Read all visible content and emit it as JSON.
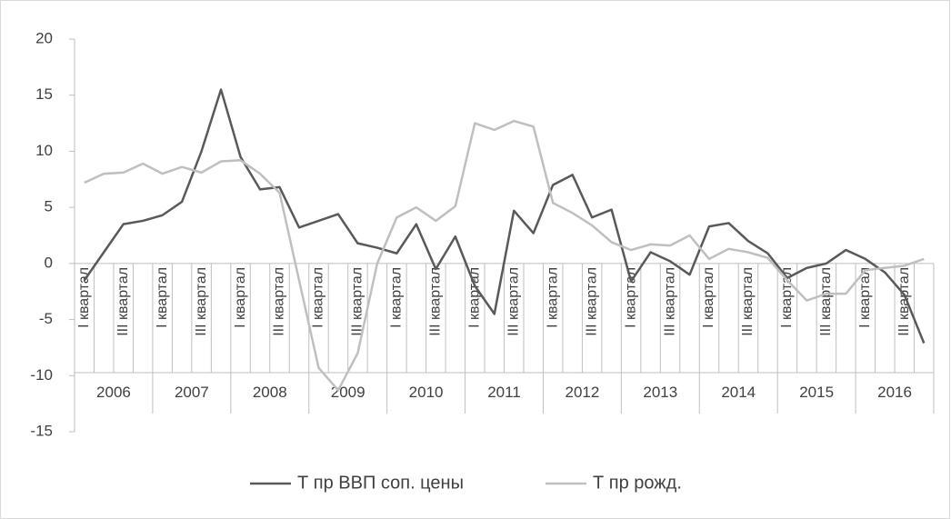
{
  "chart_data": {
    "type": "line",
    "categories": [
      "I квартал",
      null,
      "III квартал",
      null,
      "I квартал",
      null,
      "III квартал",
      null,
      "I квартал",
      null,
      "III квартал",
      null,
      "I квартал",
      null,
      "III квартал",
      null,
      "I квартал",
      null,
      "III квартал",
      null,
      "I квартал",
      null,
      "III квартал",
      null,
      "I квартал",
      null,
      "III квартал",
      null,
      "I квартал",
      null,
      "III квартал",
      null,
      "I квартал",
      null,
      "III квартал",
      null,
      "I квартал",
      null,
      "III квартал",
      null,
      "I квартал",
      null,
      "III квартал",
      null
    ],
    "category_groups": [
      "2006",
      "2007",
      "2008",
      "2009",
      "2010",
      "2011",
      "2012",
      "2013",
      "2014",
      "2015",
      "2016"
    ],
    "series": [
      {
        "name": "Т пр ВВП соп. цены",
        "color": "#595959",
        "values": [
          -1.5,
          1,
          3.5,
          3.8,
          4.3,
          5.5,
          10,
          15.5,
          9.5,
          6.6,
          6.8,
          3.2,
          3.8,
          4.4,
          1.8,
          1.4,
          0.9,
          3.5,
          -0.5,
          2.4,
          -2,
          -4.5,
          4.7,
          2.7,
          7,
          7.9,
          4.1,
          4.8,
          -1.6,
          1,
          0.2,
          -1,
          3.3,
          3.6,
          2,
          0.9,
          -1.3,
          -0.4,
          0,
          1.2,
          0.4,
          -0.8,
          -2.8,
          -7.1
        ]
      },
      {
        "name": "Т пр рожд.",
        "color": "#bfbfbf",
        "values": [
          7.2,
          8,
          8.1,
          8.9,
          8,
          8.6,
          8.1,
          9.1,
          9.2,
          8,
          6.3,
          -1.5,
          -9.3,
          -11.3,
          -8,
          0,
          4.1,
          5,
          3.8,
          5.1,
          12.5,
          11.9,
          12.7,
          12.2,
          5.4,
          4.5,
          3.4,
          1.9,
          1.2,
          1.7,
          1.6,
          2.5,
          0.4,
          1.3,
          1,
          0.5,
          -1.5,
          -3.3,
          -2.7,
          -2.7,
          -0.6,
          -0.4,
          -0.2,
          0.4
        ]
      }
    ],
    "ylim": [
      -15,
      20
    ],
    "yticks": [
      -15,
      -10,
      -5,
      0,
      5,
      10,
      15,
      20
    ],
    "legend": "bottom"
  }
}
